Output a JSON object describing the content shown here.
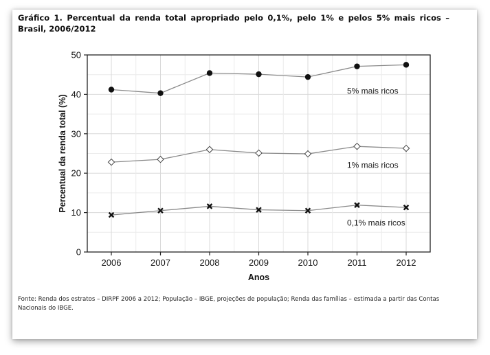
{
  "figure": {
    "title": "Gráfico 1. Percentual da renda total apropriado pelo 0,1%, pelo 1% e pelos 5% mais ricos – Brasil, 2006/2012",
    "source": "Fonte: Renda dos estratos – DIRPF 2006 a 2012; População – IBGE, projeções de população; Renda das famílias – estimada a partir das Contas Nacionais do IBGE."
  },
  "chart_data": {
    "type": "line",
    "title": "Gráfico 1. Percentual da renda total apropriado pelo 0,1%, pelo 1% e pelos 5% mais ricos – Brasil, 2006/2012",
    "xlabel": "Anos",
    "ylabel": "Percentual da renda total (%)",
    "ylim": [
      0,
      50
    ],
    "yticks": [
      "0",
      "10",
      "20",
      "30",
      "40",
      "50"
    ],
    "categories": [
      "2006",
      "2007",
      "2008",
      "2009",
      "2010",
      "2011",
      "2012"
    ],
    "grid": true,
    "legend": "inline labels next to each series",
    "series": [
      {
        "name": "5% mais ricos",
        "marker": "circle",
        "values": [
          41.2,
          40.3,
          45.4,
          45.1,
          44.4,
          47.1,
          47.5
        ]
      },
      {
        "name": "1% mais ricos",
        "marker": "diamond",
        "values": [
          22.8,
          23.5,
          26.0,
          25.1,
          24.9,
          26.8,
          26.3
        ]
      },
      {
        "name": "0,1% mais ricos",
        "marker": "cross",
        "values": [
          9.4,
          10.5,
          11.6,
          10.7,
          10.5,
          11.9,
          11.3
        ]
      }
    ],
    "colors": {
      "line": "#8a8a8a",
      "marker": "#111111",
      "grid": "#d8d8d8"
    }
  }
}
